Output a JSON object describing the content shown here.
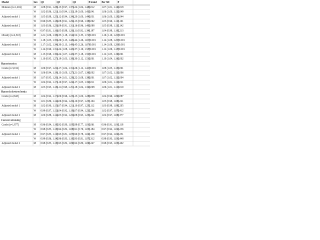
{
  "table": {
    "columns": [
      "Model",
      "Sex",
      "Q2",
      "Q3",
      "Q4",
      "P trend",
      "Per SD",
      "P"
    ],
    "rows": [
      [
        "Diabetes (n=1,204)",
        "M",
        "1.08 (0.91, 1.28)",
        "1.15 (0.97, 1.37)",
        "1.24 (1.04, 1.48)",
        "0.012",
        "1.07 (1.01, 1.14)",
        "0.018"
      ],
      [
        "",
        "W",
        "1.02 (0.86, 1.21)",
        "1.11 (0.94, 1.32)",
        "1.19 (1.00, 1.42)",
        "0.041",
        "1.06 (1.00, 1.12)",
        "0.049"
      ],
      [
        "Adjusted model 1",
        "M",
        "1.05 (0.88, 1.25)",
        "1.12 (0.94, 1.34)",
        "1.20 (1.00, 1.44)",
        "0.031",
        "1.06 (1.00, 1.13)",
        "0.044"
      ],
      [
        "",
        "W",
        "0.99 (0.83, 1.18)",
        "1.08 (0.91, 1.29)",
        "1.15 (0.96, 1.38)",
        "0.092",
        "1.05 (0.99, 1.11)",
        "0.101"
      ],
      [
        "Adjusted model 2",
        "M",
        "1.03 (0.86, 1.23)",
        "1.09 (0.91, 1.31)",
        "1.16 (0.96, 1.40)",
        "0.088",
        "1.05 (0.98, 1.12)",
        "0.142"
      ],
      [
        "",
        "W",
        "0.97 (0.81, 1.16)",
        "1.05 (0.88, 1.26)",
        "1.11 (0.92, 1.34)",
        "0.197",
        "1.04 (0.98, 1.10)",
        "0.213"
      ],
      [
        "Obesity (n=2,318)",
        "M",
        "1.21 (1.06, 1.38)",
        "1.35 (1.18, 1.54)",
        "1.52 (1.33, 1.74)",
        "<0.001",
        "1.16 (1.10, 1.22)",
        "<0.001"
      ],
      [
        "",
        "W",
        "1.18 (1.03, 1.35)",
        "1.29 (1.13, 1.48)",
        "1.44 (1.26, 1.65)",
        "<0.001",
        "1.14 (1.08, 1.20)",
        "<0.001"
      ],
      [
        "Adjusted model 1",
        "M",
        "1.17 (1.02, 1.34)",
        "1.30 (1.13, 1.49)",
        "1.45 (1.26, 1.67)",
        "<0.001",
        "1.14 (1.08, 1.20)",
        "<0.001"
      ],
      [
        "",
        "W",
        "1.14 (0.99, 1.31)",
        "1.24 (1.08, 1.43)",
        "1.37 (1.19, 1.58)",
        "<0.001",
        "1.12 (1.06, 1.18)",
        "<0.001"
      ],
      [
        "Adjusted model 2",
        "M",
        "1.13 (0.98, 1.30)",
        "1.24 (1.07, 1.43)",
        "1.37 (1.18, 1.59)",
        "<0.001",
        "1.12 (1.05, 1.19)",
        "0.001"
      ],
      [
        "",
        "W",
        "1.10 (0.95, 1.27)",
        "1.19 (1.03, 1.38)",
        "1.30 (1.12, 1.51)",
        "0.001",
        "1.10 (1.04, 1.16)",
        "0.002"
      ],
      [
        "Hypertension"
      ],
      [
        "Crude (n=3,012)",
        "M",
        "1.09 (0.97, 1.22)",
        "1.17 (1.04, 1.31)",
        "1.26 (1.12, 1.42)",
        "<0.001",
        "1.08 (1.03, 1.13)",
        "0.001"
      ],
      [
        "",
        "W",
        "1.06 (0.94, 1.19)",
        "1.13 (1.00, 1.27)",
        "1.21 (1.07, 1.36)",
        "0.002",
        "1.07 (1.02, 1.12)",
        "0.006"
      ],
      [
        "Adjusted model 1",
        "M",
        "1.07 (0.95, 1.20)",
        "1.14 (1.01, 1.28)",
        "1.22 (1.08, 1.38)",
        "0.001",
        "1.07 (1.02, 1.12)",
        "0.004"
      ],
      [
        "",
        "W",
        "1.04 (0.92, 1.17)",
        "1.10 (0.97, 1.24)",
        "1.17 (1.03, 1.32)",
        "0.011",
        "1.06 (1.01, 1.11)",
        "0.021"
      ],
      [
        "Adjusted model 2",
        "M",
        "1.05 (0.93, 1.18)",
        "1.11 (0.98, 1.25)",
        "1.18 (1.04, 1.34)",
        "0.008",
        "1.06 (1.01, 1.11)",
        "0.019"
      ],
      [
        "Hypercholesterolemia"
      ],
      [
        "Crude (n=2,645)",
        "M",
        "1.04 (0.92, 1.17)",
        "1.09 (0.96, 1.23)",
        "1.13 (1.00, 1.28)",
        "0.038",
        "1.04 (0.99, 1.09)",
        "0.087"
      ],
      [
        "",
        "W",
        "1.01 (0.89, 1.14)",
        "1.06 (0.94, 1.20)",
        "1.10 (0.97, 1.25)",
        "0.104",
        "1.03 (0.98, 1.08)",
        "0.221"
      ],
      [
        "Adjusted model 1",
        "M",
        "1.02 (0.90, 1.15)",
        "1.07 (0.94, 1.21)",
        "1.10 (0.97, 1.25)",
        "0.112",
        "1.03 (0.98, 1.08)",
        "0.205"
      ],
      [
        "",
        "W",
        "0.99 (0.87, 1.12)",
        "1.04 (0.92, 1.18)",
        "1.07 (0.94, 1.22)",
        "0.268",
        "1.02 (0.97, 1.07)",
        "0.412"
      ],
      [
        "Adjusted model 2",
        "M",
        "1.00 (0.88, 1.14)",
        "1.05 (0.92, 1.20)",
        "1.08 (0.95, 1.23)",
        "0.221",
        "1.02 (0.97, 1.08)",
        "0.377"
      ],
      [
        "Current smoking"
      ],
      [
        "Crude (n=1,877)",
        "M",
        "0.96 (0.84, 1.10)",
        "0.92 (0.80, 1.05)",
        "0.88 (0.77, 1.01)",
        "0.061",
        "0.96 (0.91, 1.01)",
        "0.118"
      ],
      [
        "",
        "W",
        "0.98 (0.85, 1.13)",
        "0.94 (0.82, 1.08)",
        "0.91 (0.79, 1.05)",
        "0.184",
        "0.97 (0.92, 1.02)",
        "0.256"
      ],
      [
        "Adjusted model 1",
        "M",
        "0.97 (0.85, 1.11)",
        "0.93 (0.81, 1.07)",
        "0.90 (0.78, 1.04)",
        "0.139",
        "0.97 (0.92, 1.02)",
        "0.231"
      ],
      [
        "",
        "W",
        "0.99 (0.86, 1.14)",
        "0.96 (0.83, 1.10)",
        "0.93 (0.81, 1.07)",
        "0.312",
        "0.98 (0.93, 1.03)",
        "0.448"
      ],
      [
        "Adjusted model 2",
        "M",
        "0.98 (0.85, 1.13)",
        "0.95 (0.82, 1.09)",
        "0.92 (0.80, 1.06)",
        "0.247",
        "0.98 (0.93, 1.03)",
        "0.402"
      ]
    ]
  }
}
